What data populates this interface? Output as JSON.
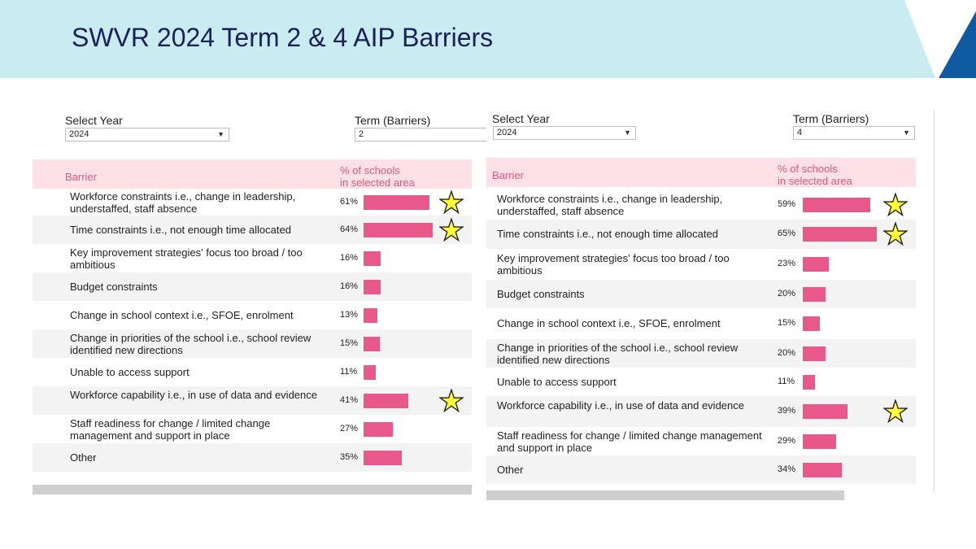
{
  "slide": {
    "title": "SWVR 2024 Term 2 & 4 AIP Barriers",
    "colors": {
      "banner": "#c8ecef",
      "banner_dark": "#0f5aa0",
      "title": "#1b1f5e",
      "bar": "#e8588a",
      "header_bg": "#fde1e6",
      "header_text": "#e8557f",
      "star_fill": "#ffff33"
    }
  },
  "panels": [
    {
      "year_label": "Select Year",
      "year_value": "2024",
      "term_label": "Term (Barriers)",
      "term_value": "2",
      "col_barrier": "Barrier",
      "col_pct_line1": "% of schools",
      "col_pct_line2": "in selected area",
      "rows": [
        {
          "label": "Workforce constraints i.e., change in leadership, understaffed, staff absence",
          "pct_text": "61%",
          "pct": 61,
          "star": true
        },
        {
          "label": "Time constraints i.e., not enough time allocated",
          "pct_text": "64%",
          "pct": 64,
          "star": true
        },
        {
          "label": "Key improvement strategies' focus too broad / too ambitious",
          "pct_text": "16%",
          "pct": 16,
          "star": false
        },
        {
          "label": "Budget constraints",
          "pct_text": "16%",
          "pct": 16,
          "star": false
        },
        {
          "label": "Change in school context i.e., SFOE, enrolment",
          "pct_text": "13%",
          "pct": 13,
          "star": false
        },
        {
          "label": "Change in priorities of the school i.e., school review identified new directions",
          "pct_text": "15%",
          "pct": 15,
          "star": false
        },
        {
          "label": "Unable to access support",
          "pct_text": "11%",
          "pct": 11,
          "star": false
        },
        {
          "label": "Workforce capability i.e., in use of data and evidence",
          "pct_text": "41%",
          "pct": 41,
          "star": true
        },
        {
          "label": "Staff readiness for change / limited change management and support in place",
          "pct_text": "27%",
          "pct": 27,
          "star": false
        },
        {
          "label": "Other",
          "pct_text": "35%",
          "pct": 35,
          "star": false
        }
      ]
    },
    {
      "year_label": "Select Year",
      "year_value": "2024",
      "term_label": "Term (Barriers)",
      "term_value": "4",
      "col_barrier": "Barrier",
      "col_pct_line1": "% of schools",
      "col_pct_line2": "in selected area",
      "rows": [
        {
          "label": "Workforce constraints i.e., change in leadership, understaffed, staff absence",
          "pct_text": "59%",
          "pct": 59,
          "star": true
        },
        {
          "label": "Time constraints i.e., not enough time allocated",
          "pct_text": "65%",
          "pct": 65,
          "star": true
        },
        {
          "label": "Key improvement strategies' focus too broad / too ambitious",
          "pct_text": "23%",
          "pct": 23,
          "star": false
        },
        {
          "label": "Budget constraints",
          "pct_text": "20%",
          "pct": 20,
          "star": false
        },
        {
          "label": "Change in school context i.e., SFOE, enrolment",
          "pct_text": "15%",
          "pct": 15,
          "star": false
        },
        {
          "label": "Change in priorities of the school i.e., school review identified new directions",
          "pct_text": "20%",
          "pct": 20,
          "star": false
        },
        {
          "label": "Unable to access support",
          "pct_text": "11%",
          "pct": 11,
          "star": false
        },
        {
          "label": "Workforce capability i.e., in use of data and evidence",
          "pct_text": "39%",
          "pct": 39,
          "star": true
        },
        {
          "label": "Staff readiness for change / limited change management and support in place",
          "pct_text": "29%",
          "pct": 29,
          "star": false
        },
        {
          "label": "Other",
          "pct_text": "34%",
          "pct": 34,
          "star": false
        }
      ]
    }
  ]
}
